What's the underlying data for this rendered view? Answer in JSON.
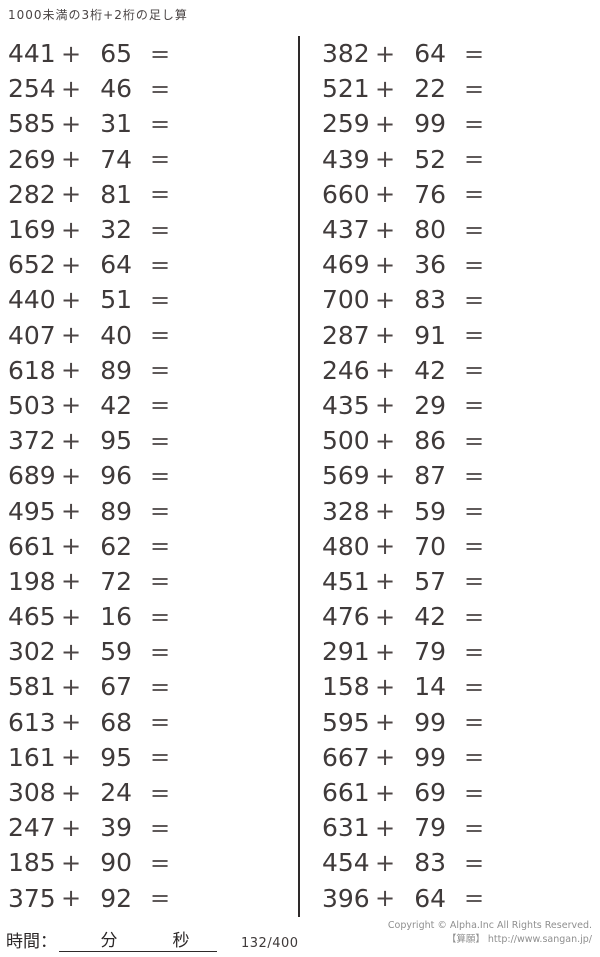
{
  "page": {
    "title": "1000未満の3桁+2桁の足し算",
    "operator": "+",
    "equals": "=",
    "footer": {
      "time_label": "時間：",
      "minutes_label": "分",
      "seconds_label": "秒",
      "counter": "132/400"
    },
    "copyright": {
      "line1": "Copyright © Alpha.Inc All Rights Reserved.",
      "line2": "【算願】 http://www.sangan.jp/"
    }
  },
  "problems": {
    "left": [
      {
        "a": 441,
        "b": 65
      },
      {
        "a": 254,
        "b": 46
      },
      {
        "a": 585,
        "b": 31
      },
      {
        "a": 269,
        "b": 74
      },
      {
        "a": 282,
        "b": 81
      },
      {
        "a": 169,
        "b": 32
      },
      {
        "a": 652,
        "b": 64
      },
      {
        "a": 440,
        "b": 51
      },
      {
        "a": 407,
        "b": 40
      },
      {
        "a": 618,
        "b": 89
      },
      {
        "a": 503,
        "b": 42
      },
      {
        "a": 372,
        "b": 95
      },
      {
        "a": 689,
        "b": 96
      },
      {
        "a": 495,
        "b": 89
      },
      {
        "a": 661,
        "b": 62
      },
      {
        "a": 198,
        "b": 72
      },
      {
        "a": 465,
        "b": 16
      },
      {
        "a": 302,
        "b": 59
      },
      {
        "a": 581,
        "b": 67
      },
      {
        "a": 613,
        "b": 68
      },
      {
        "a": 161,
        "b": 95
      },
      {
        "a": 308,
        "b": 24
      },
      {
        "a": 247,
        "b": 39
      },
      {
        "a": 185,
        "b": 90
      },
      {
        "a": 375,
        "b": 92
      }
    ],
    "right": [
      {
        "a": 382,
        "b": 64
      },
      {
        "a": 521,
        "b": 22
      },
      {
        "a": 259,
        "b": 99
      },
      {
        "a": 439,
        "b": 52
      },
      {
        "a": 660,
        "b": 76
      },
      {
        "a": 437,
        "b": 80
      },
      {
        "a": 469,
        "b": 36
      },
      {
        "a": 700,
        "b": 83
      },
      {
        "a": 287,
        "b": 91
      },
      {
        "a": 246,
        "b": 42
      },
      {
        "a": 435,
        "b": 29
      },
      {
        "a": 500,
        "b": 86
      },
      {
        "a": 569,
        "b": 87
      },
      {
        "a": 328,
        "b": 59
      },
      {
        "a": 480,
        "b": 70
      },
      {
        "a": 451,
        "b": 57
      },
      {
        "a": 476,
        "b": 42
      },
      {
        "a": 291,
        "b": 79
      },
      {
        "a": 158,
        "b": 14
      },
      {
        "a": 595,
        "b": 99
      },
      {
        "a": 667,
        "b": 99
      },
      {
        "a": 661,
        "b": 69
      },
      {
        "a": 631,
        "b": 79
      },
      {
        "a": 454,
        "b": 83
      },
      {
        "a": 396,
        "b": 64
      }
    ]
  }
}
